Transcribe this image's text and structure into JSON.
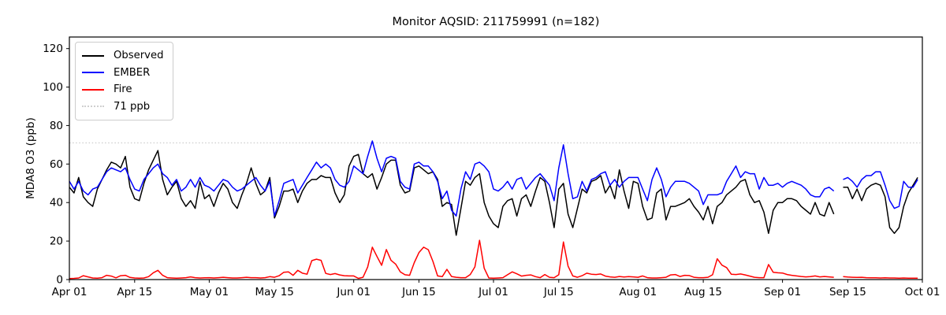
{
  "title": "Monitor AQSID: 211759991 (n=182)",
  "ylabel": "MDA8 O3 (ppb)",
  "legend": {
    "observed": "Observed",
    "ember": "EMBER",
    "fire": "Fire",
    "threshold": "71 ppb"
  },
  "colors": {
    "observed": "#000000",
    "ember": "#0000ff",
    "fire": "#ff0000",
    "threshold": "#cfcfcf",
    "axis": "#000000"
  },
  "chart_data": {
    "type": "line",
    "title": "Monitor AQSID: 211759991 (n=182)",
    "xlabel": "",
    "ylabel": "MDA8 O3 (ppb)",
    "x_unit": "day",
    "x_start_label": "Apr 01",
    "x_end_label": "Oct 01",
    "n_days": 183,
    "ylim": [
      0,
      126
    ],
    "ytick_values": [
      0,
      20,
      40,
      60,
      80,
      100,
      120
    ],
    "xtick_positions": [
      0,
      14,
      30,
      44,
      61,
      75,
      91,
      105,
      122,
      136,
      153,
      167,
      183
    ],
    "xtick_labels": [
      "Apr 01",
      "Apr 15",
      "May 01",
      "May 15",
      "Jun 01",
      "Jun 15",
      "Jul 01",
      "Jul 15",
      "Aug 01",
      "Aug 15",
      "Sep 01",
      "Sep 15",
      "Oct 01"
    ],
    "threshold_value": 71,
    "threshold_label": "71 ppb",
    "grid": false,
    "legend_position": "upper left",
    "missing_day_label": "Sep 13",
    "series": [
      {
        "name": "Observed",
        "color": "#000000",
        "values": [
          48,
          45,
          53,
          43,
          40,
          38,
          47,
          52,
          57,
          61,
          60,
          58,
          64,
          48,
          42,
          41,
          50,
          57,
          62,
          67,
          52,
          44,
          48,
          51,
          42,
          38,
          41,
          37,
          51,
          42,
          44,
          38,
          45,
          50,
          47,
          40,
          37,
          44,
          50,
          58,
          50,
          44,
          46,
          53,
          32,
          38,
          46,
          46,
          47,
          40,
          46,
          50,
          52,
          52,
          54,
          53,
          53,
          45,
          40,
          44,
          59,
          64,
          65,
          55,
          53,
          55,
          47,
          53,
          60,
          62,
          62,
          49,
          45,
          46,
          58,
          59,
          57,
          55,
          56,
          52,
          38,
          40,
          39,
          23,
          37,
          51,
          49,
          53,
          55,
          40,
          33,
          29,
          27,
          38,
          41,
          42,
          33,
          42,
          44,
          38,
          46,
          53,
          51,
          40,
          27,
          47,
          50,
          34,
          27,
          37,
          47,
          45,
          51,
          52,
          54,
          45,
          49,
          42,
          57,
          46,
          37,
          51,
          50,
          38,
          31,
          32,
          45,
          47,
          31,
          38,
          38,
          39,
          40,
          42,
          38,
          35,
          31,
          38,
          29,
          38,
          40,
          44,
          46,
          48,
          51,
          52,
          44,
          40,
          41,
          35,
          24,
          36,
          40,
          40,
          42,
          42,
          41,
          38,
          36,
          34,
          40,
          34,
          33,
          40,
          34,
          null,
          48,
          48,
          42,
          47,
          41,
          47,
          49,
          50,
          49,
          43,
          27,
          24,
          27,
          38,
          45,
          49,
          53
        ]
      },
      {
        "name": "EMBER",
        "color": "#0000ff",
        "values": [
          51,
          47,
          51,
          46,
          44,
          47,
          48,
          52,
          56,
          58,
          57,
          56,
          58,
          52,
          47,
          46,
          52,
          55,
          58,
          60,
          55,
          53,
          49,
          52,
          46,
          48,
          52,
          48,
          53,
          49,
          48,
          46,
          49,
          52,
          51,
          48,
          46,
          47,
          49,
          51,
          53,
          49,
          46,
          51,
          33,
          41,
          50,
          51,
          52,
          45,
          49,
          53,
          57,
          61,
          58,
          60,
          58,
          52,
          49,
          48,
          51,
          59,
          57,
          55,
          64,
          72,
          63,
          56,
          63,
          64,
          63,
          51,
          48,
          47,
          60,
          61,
          59,
          59,
          56,
          51,
          42,
          46,
          36,
          33,
          47,
          56,
          52,
          60,
          61,
          59,
          56,
          47,
          46,
          48,
          51,
          47,
          52,
          53,
          47,
          50,
          53,
          55,
          52,
          49,
          41,
          58,
          70,
          55,
          42,
          43,
          51,
          46,
          52,
          53,
          55,
          56,
          49,
          52,
          48,
          51,
          53,
          53,
          53,
          47,
          41,
          52,
          58,
          52,
          43,
          48,
          51,
          51,
          51,
          50,
          48,
          46,
          39,
          44,
          44,
          44,
          45,
          51,
          55,
          59,
          53,
          56,
          55,
          55,
          47,
          53,
          49,
          49,
          50,
          48,
          50,
          51,
          50,
          49,
          47,
          44,
          43,
          43,
          47,
          48,
          46,
          null,
          52,
          53,
          51,
          48,
          52,
          54,
          54,
          56,
          56,
          49,
          41,
          37,
          38,
          51,
          48,
          48,
          52
        ]
      },
      {
        "name": "Fire",
        "color": "#ff0000",
        "values": [
          0.5,
          0.6,
          0.8,
          2.0,
          1.4,
          0.8,
          0.7,
          1.0,
          2.2,
          1.8,
          0.9,
          2.0,
          2.2,
          1.1,
          0.8,
          0.7,
          0.8,
          1.5,
          3.5,
          4.8,
          2.2,
          1.0,
          0.8,
          0.7,
          0.8,
          1.0,
          1.4,
          1.0,
          0.8,
          0.9,
          1.0,
          0.8,
          1.0,
          1.2,
          1.0,
          0.8,
          0.8,
          1.0,
          1.2,
          1.0,
          1.0,
          0.8,
          1.0,
          1.5,
          1.2,
          2.0,
          3.8,
          4.0,
          2.2,
          4.8,
          3.3,
          2.8,
          9.8,
          10.6,
          10.0,
          3.2,
          2.6,
          3.1,
          2.4,
          2.0,
          1.9,
          1.9,
          0.6,
          1.2,
          6.5,
          16.8,
          12.0,
          7.4,
          15.6,
          10.0,
          8.0,
          4.0,
          2.5,
          2.2,
          8.8,
          14.0,
          16.8,
          15.5,
          9.4,
          1.9,
          1.5,
          5.3,
          1.6,
          1.2,
          1.0,
          1.0,
          2.6,
          6.6,
          20.4,
          5.9,
          0.8,
          0.7,
          0.8,
          1.0,
          2.5,
          4.0,
          3.0,
          1.8,
          2.2,
          2.4,
          1.5,
          1.0,
          2.6,
          1.2,
          1.0,
          2.5,
          19.5,
          7.0,
          1.9,
          1.2,
          2.0,
          3.3,
          2.8,
          2.6,
          2.9,
          1.8,
          1.4,
          1.2,
          1.6,
          1.3,
          1.5,
          1.4,
          1.2,
          1.9,
          1.0,
          0.8,
          0.8,
          1.0,
          1.2,
          2.4,
          2.6,
          1.6,
          2.2,
          2.1,
          1.2,
          1.0,
          1.0,
          1.2,
          2.5,
          10.8,
          7.5,
          6.2,
          2.8,
          2.6,
          2.9,
          2.4,
          1.8,
          1.2,
          1.0,
          1.0,
          7.8,
          3.8,
          3.5,
          3.4,
          2.6,
          2.2,
          1.9,
          1.6,
          1.4,
          1.5,
          1.9,
          1.4,
          1.6,
          1.4,
          1.2,
          null,
          1.5,
          1.3,
          1.2,
          1.1,
          1.2,
          1.0,
          0.9,
          0.9,
          0.8,
          0.9,
          0.8,
          0.8,
          0.7,
          0.8,
          0.7,
          0.7,
          0.7
        ]
      }
    ]
  }
}
